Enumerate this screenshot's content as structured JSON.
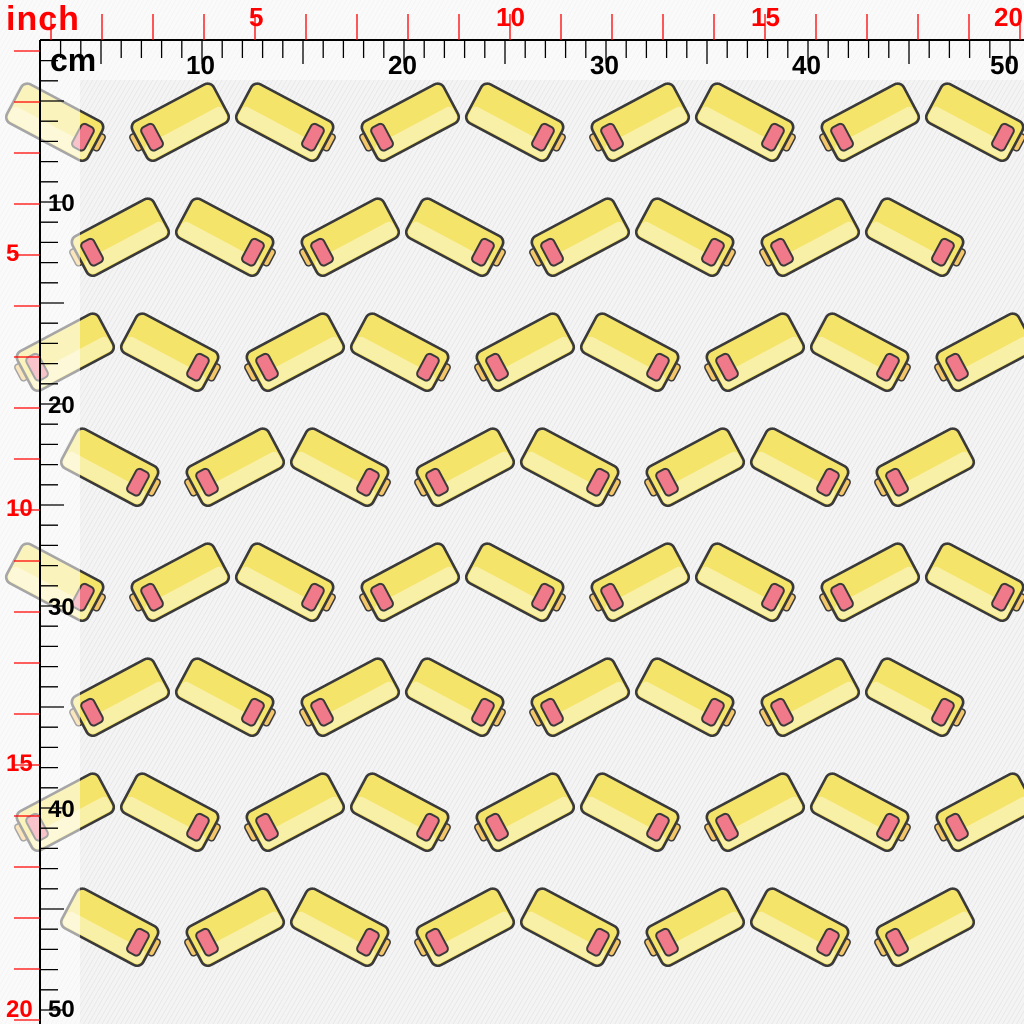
{
  "rulers": {
    "inch_label": "inch",
    "cm_label": "cm",
    "inch_marks": [
      "5",
      "10",
      "15",
      "20"
    ],
    "cm_marks": [
      "10",
      "20",
      "30",
      "40",
      "50"
    ],
    "inch_color": "#ff0000",
    "cm_color": "#000000"
  },
  "pattern": {
    "motif": "battery-icon",
    "body_color": "#f5e46a",
    "body_light_color": "#faf2b8",
    "charge_color": "#f07a8a",
    "terminal_color": "#f3c66a",
    "outline_color": "#3a3a3a",
    "background_color": "#f4f4f4"
  }
}
